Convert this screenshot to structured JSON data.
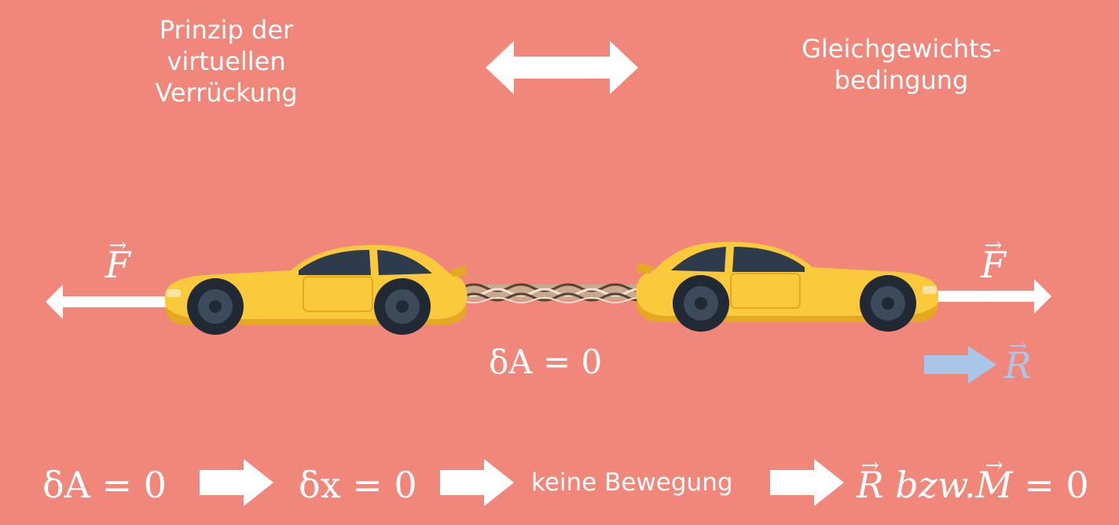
{
  "header": {
    "left_label_lines": [
      "Prinzip der",
      "virtuellen",
      "Verrückung"
    ],
    "right_label_lines": [
      "Gleichgewichts-",
      "bedingung"
    ]
  },
  "forces": {
    "left_symbol": "F",
    "right_symbol": "F",
    "resultant_symbol": "R",
    "resultant_color": "#a9c6e8"
  },
  "center_equation": "δA = 0",
  "bottom_chain": {
    "step1": "δA = 0",
    "step2": "δx = 0",
    "step3": "keine Bewegung",
    "step4_symbol_r": "R",
    "step4_mid": "bzw.",
    "step4_symbol_m": "M",
    "step4_tail": "= 0"
  },
  "colors": {
    "background": "#f0877a",
    "car_body": "#fbc93c",
    "arrow": "#ffffff"
  }
}
